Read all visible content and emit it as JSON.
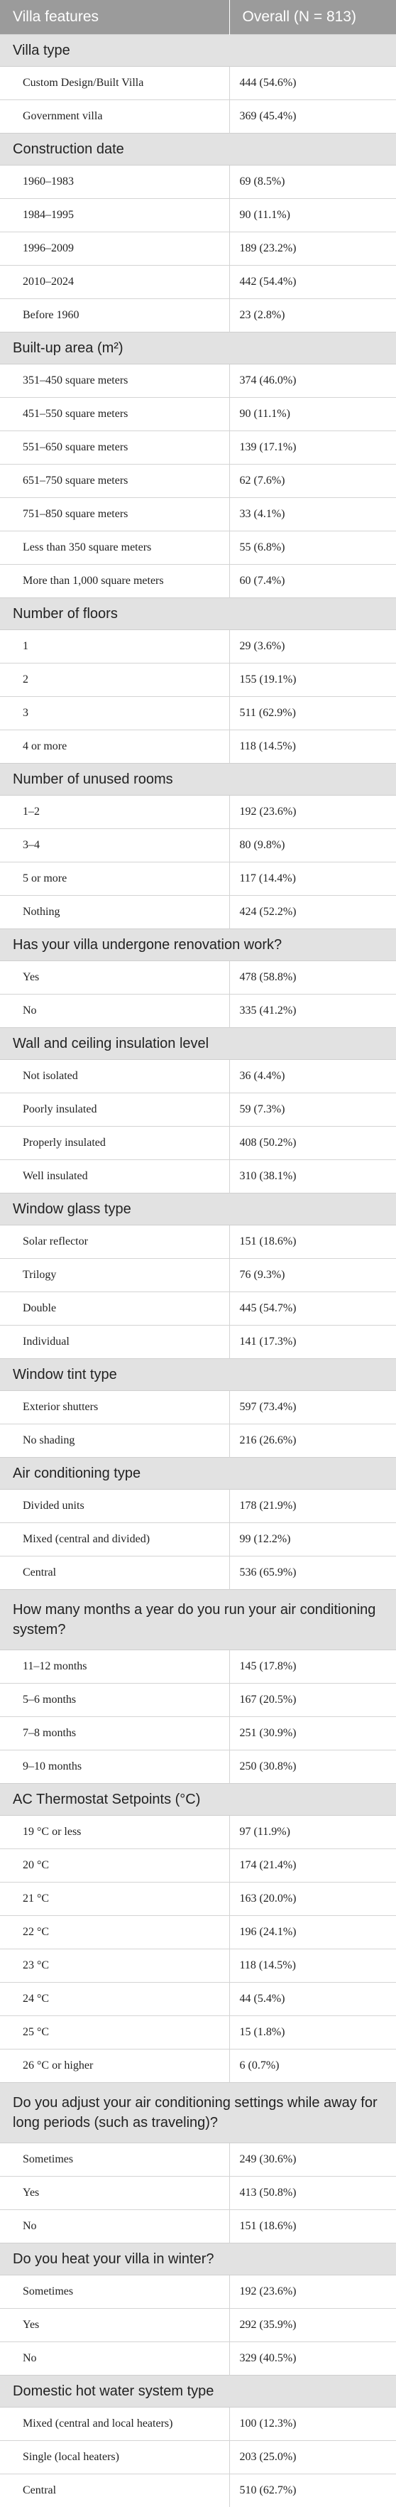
{
  "table": {
    "headers": [
      "Villa features",
      "Overall (N = 813)"
    ],
    "sections": [
      {
        "title": "Villa type",
        "rows": [
          {
            "label": "Custom Design/Built Villa",
            "value": "444 (54.6%)"
          },
          {
            "label": "Government villa",
            "value": "369 (45.4%)"
          }
        ]
      },
      {
        "title": "Construction date",
        "rows": [
          {
            "label": "1960–1983",
            "value": "69 (8.5%)"
          },
          {
            "label": "1984–1995",
            "value": "90 (11.1%)"
          },
          {
            "label": "1996–2009",
            "value": "189 (23.2%)"
          },
          {
            "label": "2010–2024",
            "value": "442 (54.4%)"
          },
          {
            "label": "Before 1960",
            "value": "23 (2.8%)"
          }
        ]
      },
      {
        "title": "Built-up area (m²)",
        "rows": [
          {
            "label": "351–450 square meters",
            "value": "374 (46.0%)"
          },
          {
            "label": "451–550 square meters",
            "value": "90 (11.1%)"
          },
          {
            "label": "551–650 square meters",
            "value": "139 (17.1%)"
          },
          {
            "label": "651–750 square meters",
            "value": "62 (7.6%)"
          },
          {
            "label": "751–850 square meters",
            "value": "33 (4.1%)"
          },
          {
            "label": "Less than 350 square meters",
            "value": "55 (6.8%)"
          },
          {
            "label": "More than 1,000 square meters",
            "value": "60 (7.4%)"
          }
        ]
      },
      {
        "title": "Number of floors",
        "rows": [
          {
            "label": "1",
            "value": "29 (3.6%)"
          },
          {
            "label": "2",
            "value": "155 (19.1%)"
          },
          {
            "label": "3",
            "value": "511 (62.9%)"
          },
          {
            "label": "4 or more",
            "value": "118 (14.5%)"
          }
        ]
      },
      {
        "title": "Number of unused rooms",
        "rows": [
          {
            "label": "1–2",
            "value": "192 (23.6%)"
          },
          {
            "label": "3–4",
            "value": "80 (9.8%)"
          },
          {
            "label": "5 or more",
            "value": "117 (14.4%)"
          },
          {
            "label": "Nothing",
            "value": "424 (52.2%)"
          }
        ]
      },
      {
        "title": "Has your villa undergone renovation work?",
        "rows": [
          {
            "label": "Yes",
            "value": "478 (58.8%)"
          },
          {
            "label": "No",
            "value": "335 (41.2%)"
          }
        ]
      },
      {
        "title": "Wall and ceiling insulation level",
        "rows": [
          {
            "label": "Not isolated",
            "value": "36 (4.4%)"
          },
          {
            "label": "Poorly insulated",
            "value": "59 (7.3%)"
          },
          {
            "label": "Properly insulated",
            "value": "408 (50.2%)"
          },
          {
            "label": "Well insulated",
            "value": "310 (38.1%)"
          }
        ]
      },
      {
        "title": "Window glass type",
        "rows": [
          {
            "label": "Solar reflector",
            "value": "151 (18.6%)"
          },
          {
            "label": "Trilogy",
            "value": "76 (9.3%)"
          },
          {
            "label": "Double",
            "value": "445 (54.7%)"
          },
          {
            "label": "Individual",
            "value": "141 (17.3%)"
          }
        ]
      },
      {
        "title": "Window tint type",
        "rows": [
          {
            "label": "Exterior shutters",
            "value": "597 (73.4%)"
          },
          {
            "label": "No shading",
            "value": "216 (26.6%)"
          }
        ]
      },
      {
        "title": "Air conditioning type",
        "rows": [
          {
            "label": "Divided units",
            "value": "178 (21.9%)"
          },
          {
            "label": "Mixed (central and divided)",
            "value": "99 (12.2%)"
          },
          {
            "label": "Central",
            "value": "536 (65.9%)"
          }
        ]
      },
      {
        "title": "How many months a year do you run your air conditioning system?",
        "tall": true,
        "rows": [
          {
            "label": "11–12 months",
            "value": "145 (17.8%)"
          },
          {
            "label": "5–6 months",
            "value": "167 (20.5%)"
          },
          {
            "label": "7–8 months",
            "value": "251 (30.9%)"
          },
          {
            "label": "9–10 months",
            "value": "250 (30.8%)"
          }
        ]
      },
      {
        "title": "AC Thermostat Setpoints (°C)",
        "rows": [
          {
            "label": "19 °C or less",
            "value": "97 (11.9%)"
          },
          {
            "label": "20 °C",
            "value": "174 (21.4%)"
          },
          {
            "label": "21 °C",
            "value": "163 (20.0%)"
          },
          {
            "label": "22 °C",
            "value": "196 (24.1%)"
          },
          {
            "label": "23 °C",
            "value": "118 (14.5%)"
          },
          {
            "label": "24 °C",
            "value": "44 (5.4%)"
          },
          {
            "label": "25 °C",
            "value": "15 (1.8%)"
          },
          {
            "label": "26 °C or higher",
            "value": "6 (0.7%)"
          }
        ]
      },
      {
        "title": "Do you adjust your air conditioning settings while away for long periods (such as traveling)?",
        "tall": true,
        "rows": [
          {
            "label": "Sometimes",
            "value": "249 (30.6%)"
          },
          {
            "label": "Yes",
            "value": "413 (50.8%)"
          },
          {
            "label": "No",
            "value": "151 (18.6%)"
          }
        ]
      },
      {
        "title": "Do you heat your villa in winter?",
        "rows": [
          {
            "label": "Sometimes",
            "value": "192 (23.6%)"
          },
          {
            "label": "Yes",
            "value": "292 (35.9%)"
          },
          {
            "label": "No",
            "value": "329 (40.5%)"
          }
        ]
      },
      {
        "title": "Domestic hot water system type",
        "rows": [
          {
            "label": "Mixed (central and local heaters)",
            "value": "100 (12.3%)"
          },
          {
            "label": "Single (local heaters)",
            "value": "203 (25.0%)"
          },
          {
            "label": "Central",
            "value": "510 (62.7%)"
          }
        ]
      }
    ]
  }
}
